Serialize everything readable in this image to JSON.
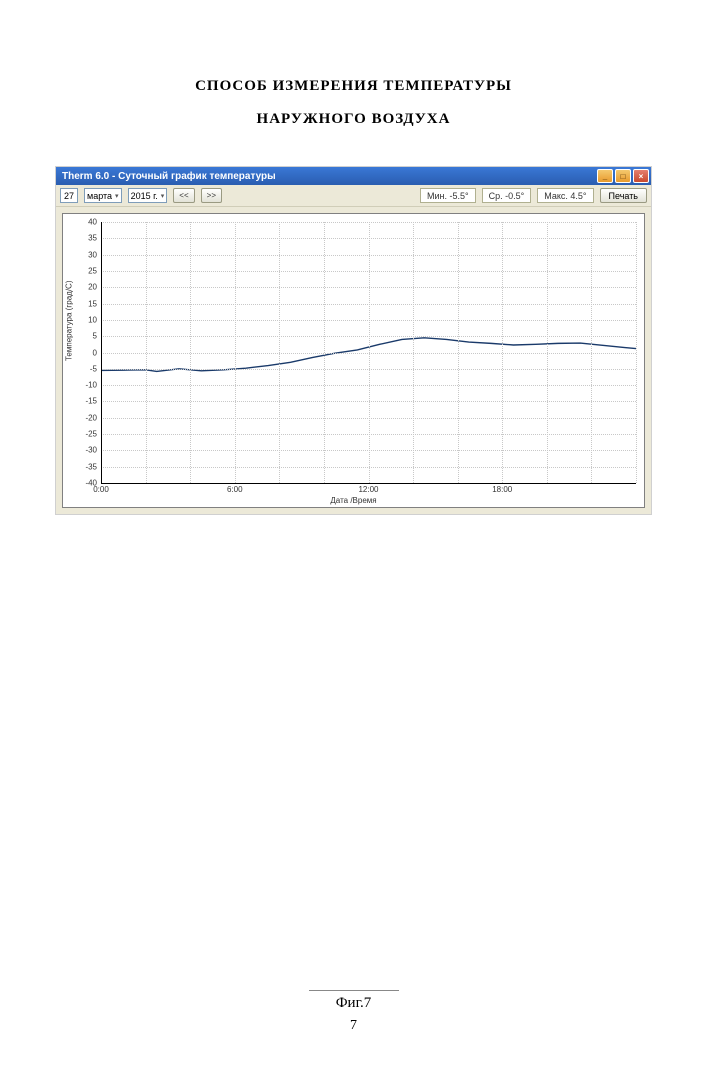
{
  "page": {
    "title_line1": "СПОСОБ ИЗМЕРЕНИЯ ТЕМПЕРАТУРЫ",
    "title_line2": "НАРУЖНОГО ВОЗДУХА",
    "figure_caption": "Фиг.7",
    "page_number": "7"
  },
  "window": {
    "title": "Therm 6.0 - Суточный график температуры",
    "toolbar": {
      "day": "27",
      "month": "марта",
      "year": "2015 г.",
      "prev": "<<",
      "next": ">>",
      "min_label": "Мин.  -5.5°",
      "avg_label": "Ср.  -0.5°",
      "max_label": "Макс.  4.5°",
      "print": "Печать"
    }
  },
  "chart": {
    "type": "line",
    "ylabel": "Температура (град/C)",
    "xlabel": "Дата /Время",
    "ylim": [
      -40,
      40
    ],
    "ytick_step": 5,
    "yticks": [
      "-40",
      "-35",
      "-30",
      "-25",
      "-20",
      "-15",
      "-10",
      "-5",
      "0",
      "5",
      "10",
      "15",
      "20",
      "25",
      "30",
      "35",
      "40"
    ],
    "xlim": [
      0,
      24
    ],
    "xticks": [
      {
        "pos": 0,
        "label": "0:00"
      },
      {
        "pos": 6,
        "label": "6:00"
      },
      {
        "pos": 12,
        "label": "12:00"
      },
      {
        "pos": 18,
        "label": "18:00"
      }
    ],
    "xtick_minor_step": 2,
    "line_color": "#1a3a6a",
    "line_width": 1.4,
    "grid_color": "#c8c8c8",
    "background_color": "#ffffff",
    "data": [
      {
        "x": 0.0,
        "y": -5.5
      },
      {
        "x": 1.0,
        "y": -5.4
      },
      {
        "x": 2.0,
        "y": -5.3
      },
      {
        "x": 2.5,
        "y": -5.8
      },
      {
        "x": 3.5,
        "y": -5.0
      },
      {
        "x": 4.5,
        "y": -5.6
      },
      {
        "x": 5.5,
        "y": -5.3
      },
      {
        "x": 6.5,
        "y": -4.8
      },
      {
        "x": 7.5,
        "y": -4.0
      },
      {
        "x": 8.5,
        "y": -3.0
      },
      {
        "x": 9.5,
        "y": -1.5
      },
      {
        "x": 10.5,
        "y": -0.2
      },
      {
        "x": 11.5,
        "y": 0.8
      },
      {
        "x": 12.5,
        "y": 2.5
      },
      {
        "x": 13.5,
        "y": 4.0
      },
      {
        "x": 14.5,
        "y": 4.5
      },
      {
        "x": 15.5,
        "y": 4.0
      },
      {
        "x": 16.5,
        "y": 3.2
      },
      {
        "x": 17.5,
        "y": 2.8
      },
      {
        "x": 18.5,
        "y": 2.3
      },
      {
        "x": 19.5,
        "y": 2.5
      },
      {
        "x": 20.5,
        "y": 2.8
      },
      {
        "x": 21.5,
        "y": 2.9
      },
      {
        "x": 22.5,
        "y": 2.2
      },
      {
        "x": 23.5,
        "y": 1.5
      },
      {
        "x": 24.0,
        "y": 1.2
      }
    ]
  }
}
